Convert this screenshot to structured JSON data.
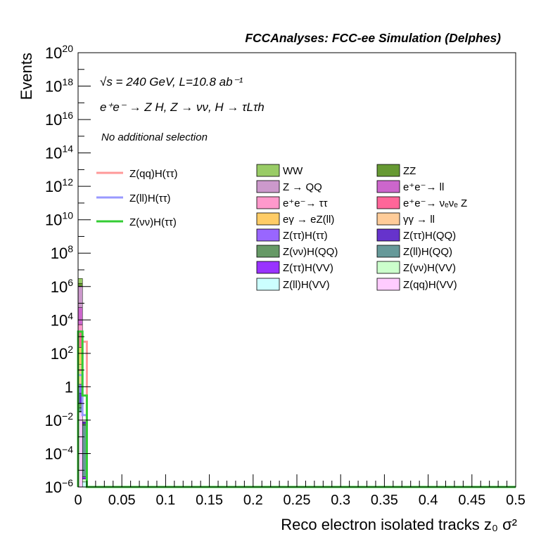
{
  "chart_data": {
    "type": "histogram",
    "title": "FCCAnalyses: FCC-ee Simulation (Delphes)",
    "xlabel": "Reco electron isolated tracks z₀ σ²",
    "ylabel": "Events",
    "xlim": [
      0,
      0.5
    ],
    "ylim": [
      1e-06,
      1e+20
    ],
    "yscale": "log",
    "grid": false,
    "legend_position": "top-right",
    "annotations": {
      "energy": "√s = 240 GeV, L=10.8 ab⁻¹",
      "process": "e⁺e⁻ → Z H, Z → νν, H → τLτh",
      "selection": "No additional selection"
    },
    "x_ticks": [
      0,
      0.05,
      0.1,
      0.15,
      0.2,
      0.25,
      0.3,
      0.35,
      0.4,
      0.45,
      0.5
    ],
    "x_tick_labels": [
      "0",
      "0.05",
      "0.1",
      "0.15",
      "0.2",
      "0.25",
      "0.3",
      "0.35",
      "0.4",
      "0.45",
      "0.5"
    ],
    "y_ticks": [
      {
        "value": 1e-06,
        "base": "10",
        "exp": "−6"
      },
      {
        "value": 0.0001,
        "base": "10",
        "exp": "−4"
      },
      {
        "value": 0.01,
        "base": "10",
        "exp": "−2"
      },
      {
        "value": 1,
        "base": "1",
        "exp": ""
      },
      {
        "value": 100.0,
        "base": "10",
        "exp": "2"
      },
      {
        "value": 10000.0,
        "base": "10",
        "exp": "4"
      },
      {
        "value": 1000000.0,
        "base": "10",
        "exp": "6"
      },
      {
        "value": 100000000.0,
        "base": "10",
        "exp": "8"
      },
      {
        "value": 10000000000.0,
        "base": "10",
        "exp": "10"
      },
      {
        "value": 1000000000000.0,
        "base": "10",
        "exp": "12"
      },
      {
        "value": 100000000000000.0,
        "base": "10",
        "exp": "14"
      },
      {
        "value": 1e+16,
        "base": "10",
        "exp": "16"
      },
      {
        "value": 1e+18,
        "base": "10",
        "exp": "18"
      },
      {
        "value": 1e+20,
        "base": "10",
        "exp": "20"
      }
    ],
    "bin_edges": [
      0,
      0.005,
      0.01
    ],
    "stacked_backgrounds": [
      {
        "name": "Z(qq)H(VV)",
        "color": "#ffccff",
        "values": [
          0.03,
          1e-06
        ]
      },
      {
        "name": "Z(ll)H(VV)",
        "color": "#ccffff",
        "values": [
          0.003,
          1e-06
        ]
      },
      {
        "name": "Z(νν)H(VV)",
        "color": "#ccffcc",
        "values": [
          0.001,
          1e-06
        ]
      },
      {
        "name": "Z(ττ)H(VV)",
        "color": "#9933ff",
        "values": [
          0.0001,
          1e-06
        ]
      },
      {
        "name": "Z(ll)H(QQ)",
        "color": "#669999",
        "values": [
          0.02,
          0.005
        ]
      },
      {
        "name": "Z(νν)H(QQ)",
        "color": "#669966",
        "values": [
          0.05,
          0.001
        ]
      },
      {
        "name": "Z(ττ)H(QQ)",
        "color": "#6633cc",
        "values": [
          0.3,
          0.002
        ]
      },
      {
        "name": "Z(ττ)H(ττ)",
        "color": "#9966ff",
        "values": [
          1,
          0.0001
        ]
      },
      {
        "name": "γγ → ll",
        "color": "#ffcc99",
        "values": [
          20,
          1e-06
        ]
      },
      {
        "name": "eγ → eZ(ll)",
        "color": "#ffcc66",
        "values": [
          200,
          1e-06
        ]
      },
      {
        "name": "e⁺e⁻→ νₑνₑ Z",
        "color": "#ff6699",
        "values": [
          2000,
          1e-06
        ]
      },
      {
        "name": "e⁺e⁻→ ττ",
        "color": "#ff99cc",
        "values": [
          3000,
          1e-06
        ]
      },
      {
        "name": "e⁺e⁻→ ll",
        "color": "#cc66cc",
        "values": [
          50000,
          1e-06
        ]
      },
      {
        "name": "Z → QQ",
        "color": "#cc99cc",
        "values": [
          1000000,
          1e-06
        ]
      },
      {
        "name": "ZZ",
        "color": "#669933",
        "values": [
          500000,
          1e-06
        ]
      },
      {
        "name": "WW",
        "color": "#99cc66",
        "values": [
          1500000,
          1e-06
        ]
      }
    ],
    "signals": [
      {
        "name": "Z(qq)H(ττ)",
        "color": "#ff9999",
        "values": [
          10,
          500
        ]
      },
      {
        "name": "Z(ll)H(ττ)",
        "color": "#9999ff",
        "values": [
          5,
          0.02
        ]
      },
      {
        "name": "Z(νν)H(ττ)",
        "color": "#33cc33",
        "values": [
          2000,
          0.3
        ]
      }
    ]
  }
}
